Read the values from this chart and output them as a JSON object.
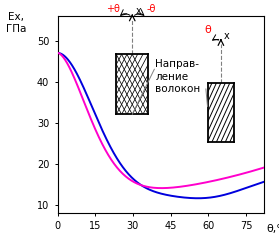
{
  "title_y": "Ex,\nГПа",
  "xlabel": "θ,°",
  "ylim": [
    8,
    56
  ],
  "xlim": [
    0,
    82
  ],
  "yticks": [
    10,
    20,
    30,
    40,
    50
  ],
  "xticks": [
    0,
    15,
    30,
    45,
    60,
    75
  ],
  "blue_color": "#0000dd",
  "magenta_color": "#ff00cc",
  "bg_color": "#ffffff",
  "annotation_text": "Направ-\nление\nволокон",
  "theta_label": "θ",
  "plus_theta": "+θ",
  "minus_theta": "-θ"
}
